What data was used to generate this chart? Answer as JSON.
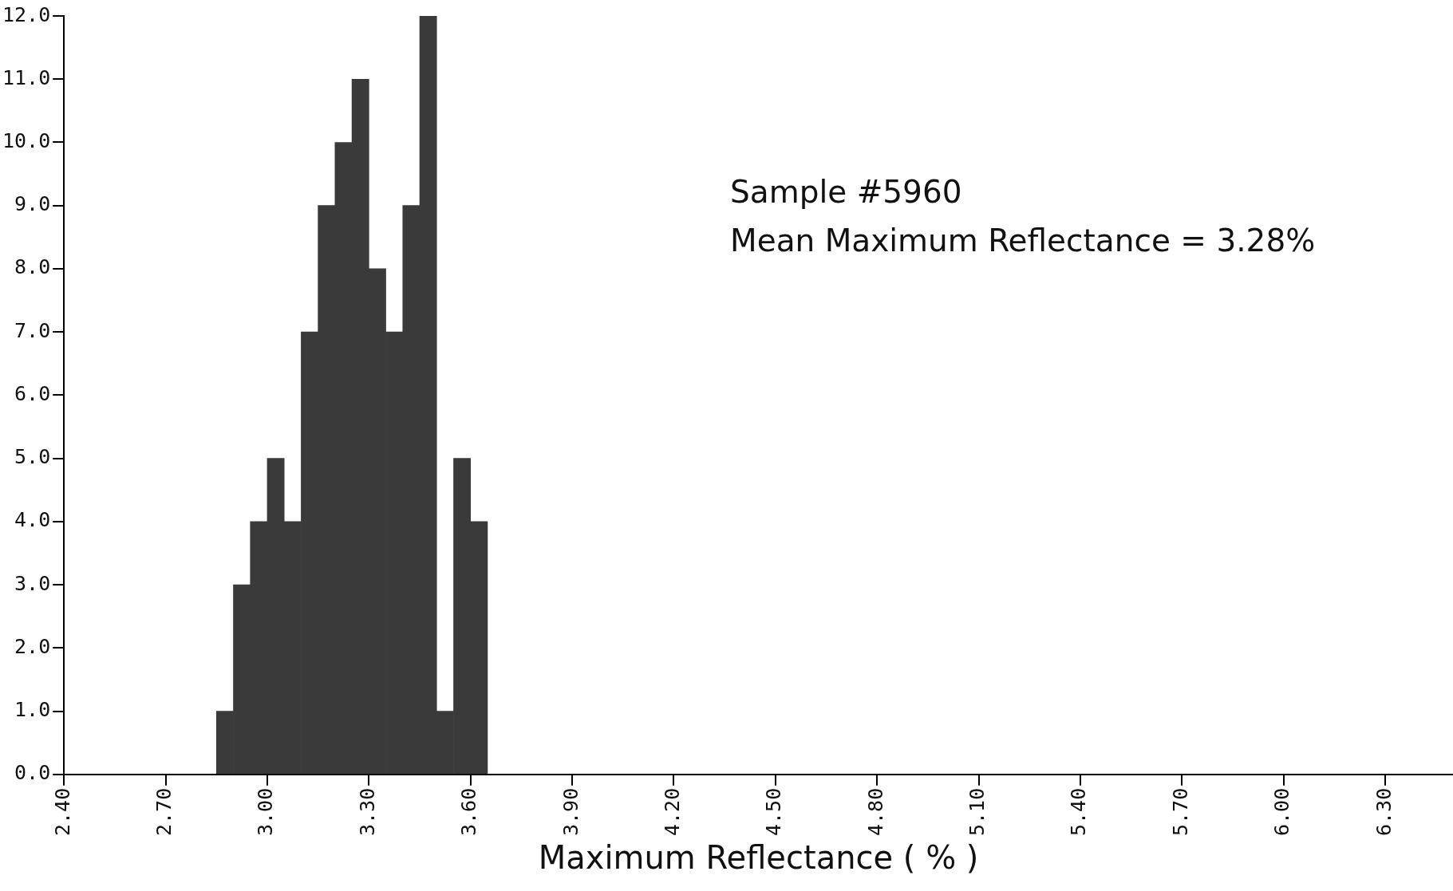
{
  "chart_data": {
    "type": "histogram",
    "xlabel": "Maximum Reflectance ( % )",
    "bins": [
      2.85,
      2.9,
      2.95,
      3.0,
      3.05,
      3.1,
      3.15,
      3.2,
      3.25,
      3.3,
      3.35,
      3.4,
      3.45,
      3.5,
      3.55,
      3.6,
      3.65
    ],
    "values": [
      1,
      3,
      4,
      5,
      4,
      7,
      9,
      10,
      11,
      8,
      7,
      9,
      12,
      1,
      5,
      4
    ],
    "color": "#3a3a3a",
    "xlim": [
      2.4,
      6.5
    ],
    "xticks": [
      {
        "value": 2.4,
        "label": "2.40"
      },
      {
        "value": 2.7,
        "label": "2.70"
      },
      {
        "value": 3.0,
        "label": "3.00"
      },
      {
        "value": 3.3,
        "label": "3.30"
      },
      {
        "value": 3.6,
        "label": "3.60"
      },
      {
        "value": 3.9,
        "label": "3.90"
      },
      {
        "value": 4.2,
        "label": "4.20"
      },
      {
        "value": 4.5,
        "label": "4.50"
      },
      {
        "value": 4.8,
        "label": "4.80"
      },
      {
        "value": 5.1,
        "label": "5.10"
      },
      {
        "value": 5.4,
        "label": "5.40"
      },
      {
        "value": 5.7,
        "label": "5.70"
      },
      {
        "value": 6.0,
        "label": "6.00"
      },
      {
        "value": 6.3,
        "label": "6.30"
      }
    ],
    "ylim": [
      0,
      12
    ],
    "yticks": [
      {
        "value": 0,
        "label": "0.0"
      },
      {
        "value": 1,
        "label": "1.0"
      },
      {
        "value": 2,
        "label": "2.0"
      },
      {
        "value": 3,
        "label": "3.0"
      },
      {
        "value": 4,
        "label": "4.0"
      },
      {
        "value": 5,
        "label": "5.0"
      },
      {
        "value": 6,
        "label": "6.0"
      },
      {
        "value": 7,
        "label": "7.0"
      },
      {
        "value": 8,
        "label": "8.0"
      },
      {
        "value": 9,
        "label": "9.0"
      },
      {
        "value": 10,
        "label": "10.0"
      },
      {
        "value": 11,
        "label": "11.0"
      },
      {
        "value": 12,
        "label": "12.0"
      }
    ],
    "grid": false,
    "legend": false,
    "annotations": [
      "Sample #5960",
      "Mean Maximum Reflectance = 3.28%"
    ]
  }
}
